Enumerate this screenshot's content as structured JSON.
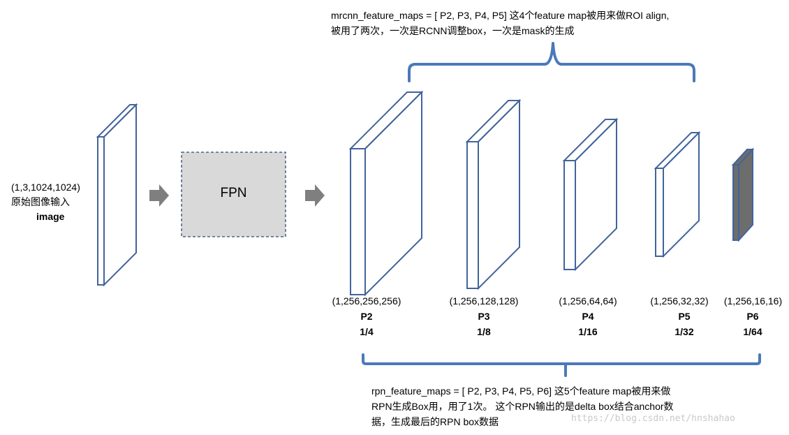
{
  "input": {
    "shape": "(1,3,1024,1024)",
    "name_cn": "原始图像输入",
    "name": "image"
  },
  "fpn_label": "FPN",
  "mrcnn_note": {
    "line1": "mrcnn_feature_maps = [ P2, P3, P4, P5] 这4个feature map被用来做ROI align,",
    "line2": "被用了两次，一次是RCNN调整box，一次是mask的生成"
  },
  "rpn_note": {
    "line1": "rpn_feature_maps = [ P2, P3, P4, P5, P6] 这5个feature map被用来做",
    "line2": "RPN生成Box用，用了1次。 这个RPN输出的是delta box结合anchor数",
    "line3": "据，生成最后的RPN box数据"
  },
  "feature_maps": [
    {
      "shape": "(1,256,256,256)",
      "name": "P2",
      "scale": "1/4"
    },
    {
      "shape": "(1,256,128,128)",
      "name": "P3",
      "scale": "1/8"
    },
    {
      "shape": "(1,256,64,64)",
      "name": "P4",
      "scale": "1/16"
    },
    {
      "shape": "(1,256,32,32)",
      "name": "P5",
      "scale": "1/32"
    },
    {
      "shape": "(1,256,16,16)",
      "name": "P6",
      "scale": "1/64"
    }
  ],
  "colors": {
    "outline": "#41649b",
    "bracket": "#4a7ab8",
    "arrow": "#7f7f7f",
    "fpn_fill": "#d9d9d9",
    "fpn_border": "#2c4a74",
    "p6_fill": "#6d6d6d"
  },
  "watermark": "https://blog.csdn.net/hnshahao"
}
